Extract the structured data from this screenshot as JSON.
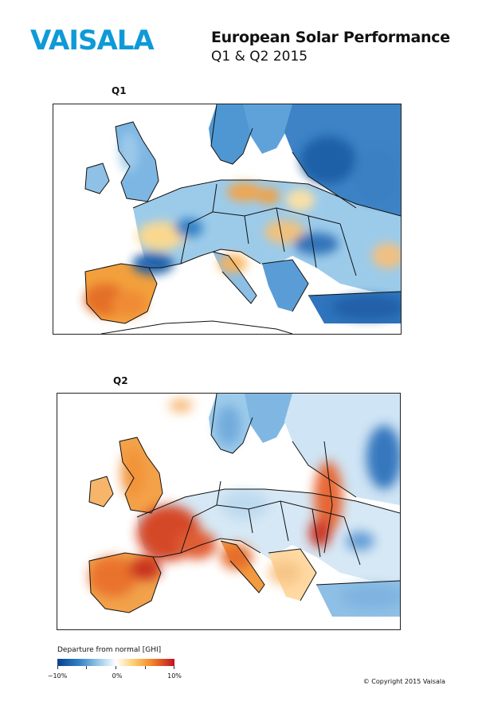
{
  "header": {
    "logo_text": "VAISALA",
    "title": "European Solar Performance",
    "subtitle": "Q1 & Q2 2015"
  },
  "maps": [
    {
      "label": "Q1",
      "id": "q1"
    },
    {
      "label": "Q2",
      "id": "q2"
    }
  ],
  "legend": {
    "title": "Departure from normal [GHI]",
    "ticks": [
      "−10%",
      "0%",
      "10%"
    ],
    "colors": [
      "#0b3f8f",
      "#2f7fc4",
      "#9fcbea",
      "#ffffff",
      "#ffd27a",
      "#f48a2c",
      "#c1121f"
    ]
  },
  "footer": {
    "copyright": "© Copyright 2015 Vaisala"
  },
  "colors": {
    "brand": "#0e9ad7"
  }
}
